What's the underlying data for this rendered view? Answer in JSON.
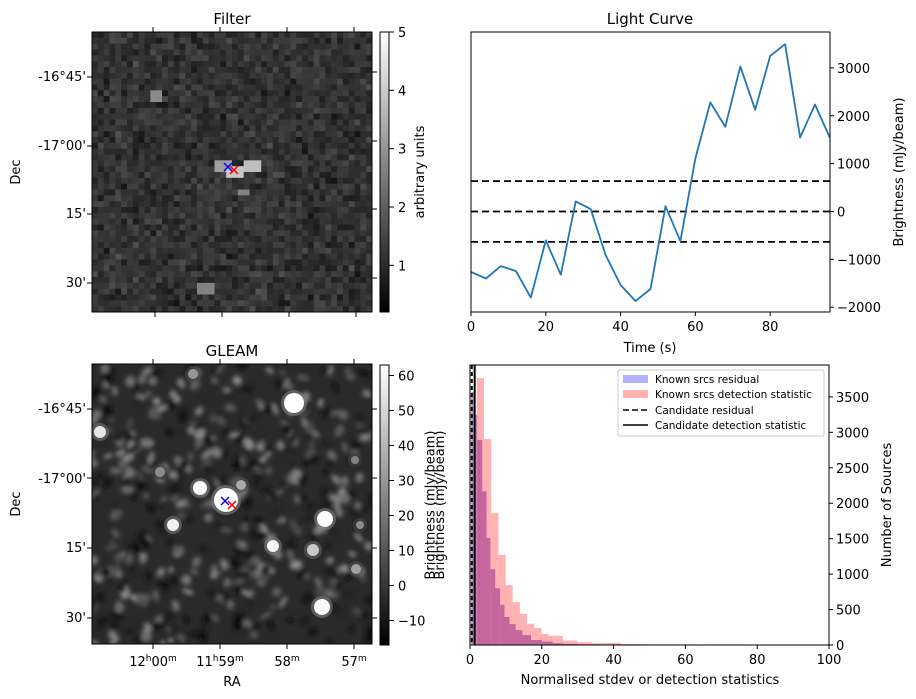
{
  "figure": {
    "panels": {
      "filter": {
        "title": "Filter",
        "ylabel": "Dec",
        "yticks": [
          "-16°45'",
          "-17°00'",
          "15'",
          "30'"
        ],
        "colorbar": {
          "label": "arbitrary units",
          "ticks": [
            "1",
            "2",
            "3",
            "4",
            "5"
          ],
          "range": [
            0.2,
            5.0
          ]
        },
        "markers": [
          {
            "name": "candidate-position",
            "color": "#0000ff",
            "symbol": "x"
          },
          {
            "name": "fitted-position",
            "color": "#ff0000",
            "symbol": "x"
          }
        ]
      },
      "gleam": {
        "title": "GLEAM",
        "ylabel": "Dec",
        "xlabel": "RA",
        "yticks": [
          "-16°45'",
          "-17°00'",
          "15'",
          "30'"
        ],
        "xticks": [
          {
            "main": "12",
            "h": "h",
            "rest": "00",
            "m": "m"
          },
          {
            "main": "11",
            "h": "h",
            "rest": "59",
            "m": "m"
          },
          {
            "main": "",
            "h": "",
            "rest": "58",
            "m": "m"
          },
          {
            "main": "",
            "h": "",
            "rest": "57",
            "m": "m"
          }
        ],
        "colorbar": {
          "label": "Brightness (mJy/beam)",
          "ticks": [
            "−10",
            "0",
            "10",
            "20",
            "30",
            "40",
            "50",
            "60"
          ],
          "range": [
            -17,
            63
          ]
        },
        "markers": [
          {
            "name": "candidate-position",
            "color": "#0000ff",
            "symbol": "x"
          },
          {
            "name": "fitted-position",
            "color": "#ff0000",
            "symbol": "x"
          }
        ]
      }
    },
    "colors": {
      "line": "#1f77b4",
      "hist_residual": "#b2b2ff",
      "hist_detection": "#ffb2b2",
      "hist_overlap": "#c87dab",
      "marker_blue": "#0000ff",
      "marker_red": "#ff0000"
    }
  },
  "chart_data": [
    {
      "type": "line",
      "title": "Light Curve",
      "xlabel": "Time (s)",
      "ylabel": "Brightness (mJy/beam)",
      "xlim": [
        0,
        96
      ],
      "ylim": [
        -2100,
        3750
      ],
      "xticks": [
        0,
        20,
        40,
        60,
        80
      ],
      "yticks": [
        -2000,
        -1000,
        0,
        1000,
        2000,
        3000
      ],
      "ytick_labels": [
        "−2000",
        "−1000",
        "0",
        "1000",
        "2000",
        "3000"
      ],
      "yaxis_side": "right",
      "x": [
        0,
        4,
        8,
        12,
        16,
        20,
        24,
        28,
        32,
        36,
        40,
        44,
        48,
        52,
        56,
        60,
        64,
        68,
        72,
        76,
        80,
        84,
        88,
        92,
        96
      ],
      "values": [
        -1265,
        -1400,
        -1140,
        -1245,
        -1800,
        -605,
        -1320,
        210,
        50,
        -910,
        -1535,
        -1870,
        -1620,
        110,
        -620,
        1110,
        2280,
        1770,
        3030,
        2125,
        3250,
        3495,
        1545,
        2235,
        1535
      ],
      "hlines": [
        {
          "y": 635,
          "style": "dashed"
        },
        {
          "y": 0,
          "style": "dashed"
        },
        {
          "y": -635,
          "style": "dashed"
        }
      ]
    },
    {
      "type": "bar",
      "title": "",
      "xlabel": "Normalised stdev or detection statistics",
      "ylabel_left": "Brightness (mJy/beam)",
      "ylabel_right": "Number of Sources",
      "xlim": [
        0,
        100
      ],
      "ylim": [
        0,
        3950
      ],
      "xticks": [
        0,
        20,
        40,
        60,
        80,
        100
      ],
      "yticks": [
        0,
        500,
        1000,
        1500,
        2000,
        2500,
        3000,
        3500
      ],
      "legend_position": "top-right",
      "legend": [
        {
          "label": "Known srcs residual",
          "kind": "patch",
          "color": "#b2b2ff"
        },
        {
          "label": "Known srcs detection statistic",
          "kind": "patch",
          "color": "#ffb2b2"
        },
        {
          "label": "Candidate residual",
          "kind": "dashed-line",
          "color": "#000000"
        },
        {
          "label": "Candidate detection statistic",
          "kind": "solid-line",
          "color": "#000000"
        }
      ],
      "series": [
        {
          "name": "Known srcs detection statistic",
          "bin_edges": [
            1.9,
            3.9,
            5.9,
            7.9,
            9.9,
            11.9,
            13.9,
            15.9,
            17.9,
            19.9,
            21.9,
            25.9,
            29.9,
            33.9,
            37.9,
            41.9,
            47.9,
            62.9,
            66.9,
            75.9,
            79.9,
            95.9
          ],
          "values": [
            3765,
            2905,
            1860,
            1270,
            845,
            605,
            440,
            300,
            240,
            155,
            130,
            60,
            40,
            25,
            30,
            12,
            8,
            0,
            8,
            0,
            6
          ]
        },
        {
          "name": "Known srcs residual",
          "bin_edges": [
            0.3,
            1.0,
            2.0,
            3.4,
            4.6,
            5.7,
            7.0,
            8.4,
            9.6,
            11.0,
            12.7,
            14.6,
            17.0,
            20.0,
            23.0,
            26.0,
            30.0,
            37.0,
            50.0
          ],
          "values": [
            3570,
            3245,
            2890,
            2170,
            1510,
            1070,
            800,
            565,
            395,
            295,
            210,
            140,
            70,
            50,
            25,
            15,
            10,
            8
          ]
        }
      ],
      "vlines": [
        {
          "name": "Candidate residual",
          "x": 0.5,
          "style": "dashed"
        },
        {
          "name": "Candidate detection statistic",
          "x": 1.3,
          "style": "solid"
        }
      ]
    }
  ]
}
